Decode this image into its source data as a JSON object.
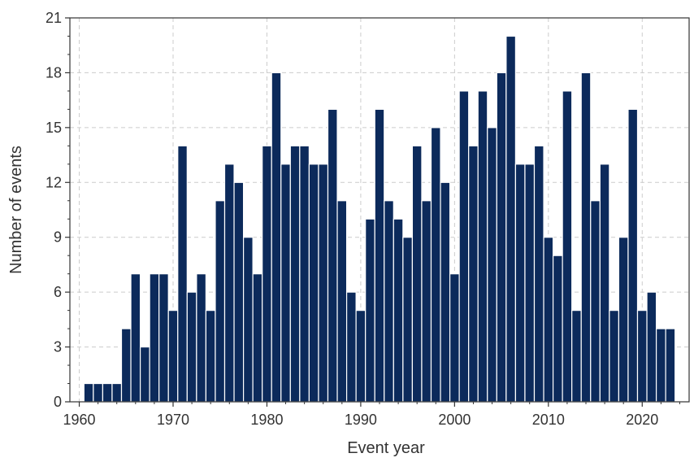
{
  "chart_data": {
    "type": "bar",
    "title": "",
    "xlabel": "Event year",
    "ylabel": "Number of events",
    "x": [
      1961,
      1962,
      1963,
      1964,
      1965,
      1966,
      1967,
      1968,
      1969,
      1970,
      1971,
      1972,
      1973,
      1974,
      1975,
      1976,
      1977,
      1978,
      1979,
      1980,
      1981,
      1982,
      1983,
      1984,
      1985,
      1986,
      1987,
      1988,
      1989,
      1990,
      1991,
      1992,
      1993,
      1994,
      1995,
      1996,
      1997,
      1998,
      1999,
      2000,
      2001,
      2002,
      2003,
      2004,
      2005,
      2006,
      2007,
      2008,
      2009,
      2010,
      2011,
      2012,
      2013,
      2014,
      2015,
      2016,
      2017,
      2018,
      2019,
      2020,
      2021,
      2022,
      2023
    ],
    "values": [
      1,
      1,
      1,
      1,
      4,
      7,
      3,
      7,
      7,
      5,
      14,
      6,
      7,
      5,
      11,
      13,
      12,
      9,
      7,
      14,
      18,
      13,
      14,
      14,
      13,
      13,
      16,
      11,
      6,
      5,
      10,
      16,
      11,
      10,
      9,
      14,
      11,
      15,
      12,
      7,
      17,
      14,
      17,
      15,
      18,
      20,
      13,
      13,
      14,
      9,
      8,
      17,
      5,
      18,
      11,
      13,
      5,
      9,
      16,
      5,
      6,
      4,
      4
    ],
    "xlim": [
      1959,
      2025
    ],
    "ylim": [
      0,
      21
    ],
    "xticks": [
      1960,
      1970,
      1980,
      1990,
      2000,
      2010,
      2020
    ],
    "xtick_labels": [
      "1960",
      "1970",
      "1980",
      "1990",
      "2000",
      "2010",
      "2020"
    ],
    "yticks": [
      0,
      3,
      6,
      9,
      12,
      15,
      18,
      21
    ],
    "ytick_labels": [
      "0",
      "3",
      "6",
      "9",
      "12",
      "15",
      "18",
      "21"
    ],
    "grid": true,
    "bar_color": "#0c2a5b",
    "bar_edge_color": "#ffffff"
  }
}
